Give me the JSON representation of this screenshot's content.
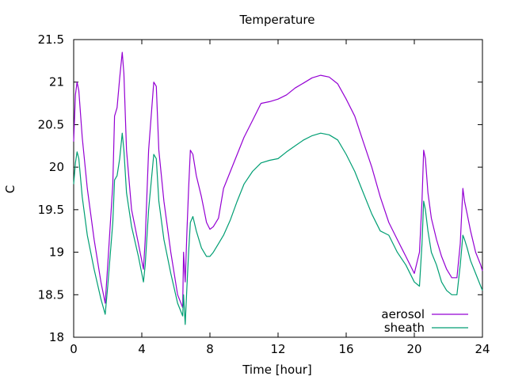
{
  "chart_data": {
    "type": "line",
    "title": "Temperature",
    "xlabel": "Time [hour]",
    "ylabel": "C",
    "xlim": [
      0,
      24
    ],
    "ylim": [
      18,
      21.5
    ],
    "xticks": [
      0,
      4,
      8,
      12,
      16,
      20,
      24
    ],
    "xtick_labels": [
      "0",
      "4",
      "8",
      "12",
      "16",
      "20",
      "24"
    ],
    "yticks": [
      18,
      18.5,
      19,
      19.5,
      20,
      20.5,
      21,
      21.5
    ],
    "ytick_labels": [
      "18",
      "18.5",
      "19",
      "19.5",
      "20",
      "20.5",
      "21",
      "21.5"
    ],
    "grid": false,
    "legend_position": "bottom-right",
    "series": [
      {
        "name": "aerosol",
        "color": "#9400d3",
        "x": [
          0,
          0.1,
          0.2,
          0.3,
          0.5,
          0.8,
          1.2,
          1.6,
          1.85,
          2.0,
          2.3,
          2.4,
          2.55,
          2.7,
          2.85,
          2.95,
          3.1,
          3.4,
          3.8,
          4.1,
          4.2,
          4.4,
          4.7,
          4.85,
          5.0,
          5.3,
          5.7,
          6.1,
          6.4,
          6.45,
          6.55,
          6.65,
          6.75,
          6.85,
          7.0,
          7.2,
          7.5,
          7.8,
          8.0,
          8.2,
          8.5,
          8.8,
          9.2,
          9.6,
          10.0,
          10.5,
          11.0,
          11.5,
          12.0,
          12.5,
          13.0,
          13.5,
          14.0,
          14.5,
          15.0,
          15.5,
          16.0,
          16.5,
          17.0,
          17.5,
          18.0,
          18.5,
          19.0,
          19.5,
          20.0,
          20.3,
          20.45,
          20.55,
          20.65,
          20.8,
          21.0,
          21.3,
          21.6,
          21.9,
          22.2,
          22.5,
          22.7,
          22.85,
          22.95,
          23.1,
          23.3,
          23.6,
          23.9,
          24.0
        ],
        "y": [
          20.3,
          20.85,
          21.0,
          20.9,
          20.35,
          19.75,
          19.15,
          18.65,
          18.4,
          18.85,
          19.8,
          20.6,
          20.7,
          21.05,
          21.35,
          21.1,
          20.2,
          19.5,
          19.1,
          18.8,
          19.15,
          20.2,
          21.0,
          20.95,
          20.2,
          19.6,
          19.0,
          18.5,
          18.35,
          19.0,
          18.65,
          19.25,
          19.75,
          20.2,
          20.15,
          19.9,
          19.65,
          19.35,
          19.27,
          19.3,
          19.4,
          19.75,
          19.95,
          20.15,
          20.35,
          20.55,
          20.75,
          20.77,
          20.8,
          20.85,
          20.93,
          20.99,
          21.05,
          21.08,
          21.06,
          20.98,
          20.8,
          20.6,
          20.3,
          20.0,
          19.65,
          19.35,
          19.15,
          18.95,
          18.75,
          19.0,
          19.6,
          20.2,
          20.1,
          19.7,
          19.4,
          19.15,
          18.95,
          18.8,
          18.7,
          18.7,
          19.1,
          19.75,
          19.6,
          19.45,
          19.25,
          19.0,
          18.85,
          18.78
        ]
      },
      {
        "name": "sheath",
        "color": "#009e73",
        "x": [
          0,
          0.1,
          0.2,
          0.3,
          0.5,
          0.8,
          1.2,
          1.6,
          1.85,
          2.0,
          2.3,
          2.4,
          2.55,
          2.7,
          2.85,
          2.95,
          3.1,
          3.4,
          3.8,
          4.1,
          4.2,
          4.4,
          4.7,
          4.85,
          5.0,
          5.3,
          5.7,
          6.1,
          6.4,
          6.45,
          6.55,
          6.65,
          6.75,
          6.85,
          7.0,
          7.2,
          7.5,
          7.8,
          8.0,
          8.2,
          8.5,
          8.8,
          9.2,
          9.6,
          10.0,
          10.5,
          11.0,
          11.5,
          12.0,
          12.5,
          13.0,
          13.5,
          14.0,
          14.5,
          15.0,
          15.5,
          16.0,
          16.5,
          17.0,
          17.5,
          18.0,
          18.5,
          19.0,
          19.5,
          20.0,
          20.3,
          20.45,
          20.55,
          20.65,
          20.8,
          21.0,
          21.3,
          21.6,
          21.9,
          22.2,
          22.5,
          22.7,
          22.85,
          22.95,
          23.1,
          23.3,
          23.6,
          23.9,
          24.0
        ],
        "y": [
          19.8,
          20.05,
          20.18,
          20.1,
          19.65,
          19.2,
          18.8,
          18.45,
          18.27,
          18.6,
          19.35,
          19.85,
          19.9,
          20.1,
          20.4,
          20.2,
          19.7,
          19.3,
          18.95,
          18.65,
          18.85,
          19.5,
          20.15,
          20.1,
          19.6,
          19.15,
          18.75,
          18.4,
          18.25,
          18.5,
          18.15,
          18.6,
          19.0,
          19.35,
          19.42,
          19.25,
          19.05,
          18.95,
          18.95,
          19.0,
          19.1,
          19.2,
          19.38,
          19.6,
          19.8,
          19.95,
          20.05,
          20.08,
          20.1,
          20.18,
          20.25,
          20.32,
          20.37,
          20.4,
          20.38,
          20.32,
          20.15,
          19.95,
          19.7,
          19.45,
          19.25,
          19.2,
          19.0,
          18.85,
          18.65,
          18.6,
          19.1,
          19.6,
          19.5,
          19.25,
          19.0,
          18.85,
          18.65,
          18.55,
          18.5,
          18.5,
          18.85,
          19.2,
          19.15,
          19.05,
          18.9,
          18.75,
          18.6,
          18.55
        ]
      }
    ]
  }
}
